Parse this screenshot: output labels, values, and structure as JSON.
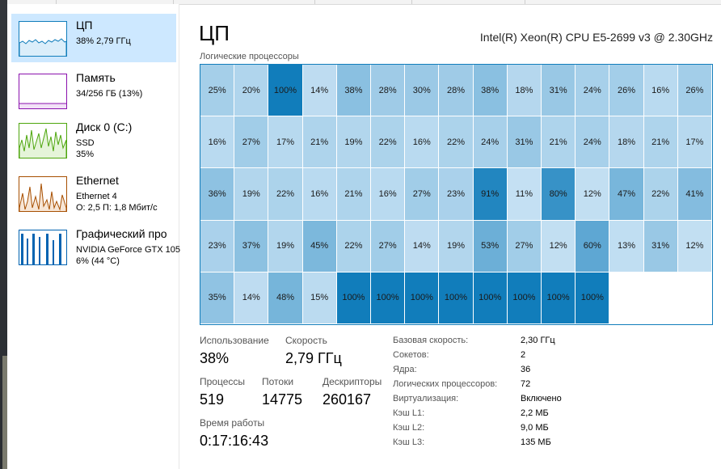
{
  "sidebar": {
    "items": [
      {
        "title": "ЦП",
        "lines": [
          "38% 2,79 ГГц"
        ],
        "selected": true,
        "color": "#117dbb",
        "icon": "cpu-graph-icon"
      },
      {
        "title": "Память",
        "lines": [
          "34/256 ГБ (13%)"
        ],
        "selected": false,
        "color": "#8b12ae",
        "icon": "memory-graph-icon"
      },
      {
        "title": "Диск 0 (C:)",
        "lines": [
          "SSD",
          "35%"
        ],
        "selected": false,
        "color": "#4da60c",
        "icon": "disk-graph-icon"
      },
      {
        "title": "Ethernet",
        "lines": [
          "Ethernet 4",
          "О: 2,5 П: 1,8 Мбит/с"
        ],
        "selected": false,
        "color": "#a74f01",
        "icon": "ethernet-graph-icon"
      },
      {
        "title": "Графический про",
        "lines": [
          "NVIDIA GeForce GTX 105",
          "6% (44 °C)"
        ],
        "selected": false,
        "color": "#0063b1",
        "icon": "gpu-graph-icon"
      }
    ]
  },
  "main": {
    "title": "ЦП",
    "cpu_name": "Intel(R) Xeon(R) CPU E5-2699 v3 @ 2.30GHz",
    "grid_label": "Логические процессоры",
    "processors": [
      "25%",
      "20%",
      "100%",
      "14%",
      "38%",
      "28%",
      "30%",
      "28%",
      "38%",
      "18%",
      "31%",
      "24%",
      "26%",
      "16%",
      "26%",
      "16%",
      "27%",
      "17%",
      "21%",
      "19%",
      "22%",
      "16%",
      "22%",
      "24%",
      "31%",
      "21%",
      "24%",
      "18%",
      "21%",
      "17%",
      "36%",
      "19%",
      "22%",
      "16%",
      "21%",
      "16%",
      "27%",
      "23%",
      "91%",
      "11%",
      "80%",
      "12%",
      "47%",
      "22%",
      "41%",
      "23%",
      "37%",
      "19%",
      "45%",
      "22%",
      "27%",
      "14%",
      "19%",
      "53%",
      "27%",
      "12%",
      "60%",
      "13%",
      "31%",
      "12%",
      "35%",
      "14%",
      "48%",
      "15%",
      "100%",
      "100%",
      "100%",
      "100%",
      "100%",
      "100%",
      "100%",
      "100%"
    ],
    "stats": {
      "usage_label": "Использование",
      "usage_value": "38%",
      "speed_label": "Скорость",
      "speed_value": "2,79 ГГц",
      "processes_label": "Процессы",
      "processes_value": "519",
      "threads_label": "Потоки",
      "threads_value": "14775",
      "handles_label": "Дескрипторы",
      "handles_value": "260167",
      "uptime_label": "Время работы",
      "uptime_value": "0:17:16:43"
    },
    "specs": [
      {
        "label": "Базовая скорость:",
        "value": "2,30 ГГц"
      },
      {
        "label": "Сокетов:",
        "value": "2"
      },
      {
        "label": "Ядра:",
        "value": "36"
      },
      {
        "label": "Логических процессоров:",
        "value": "72"
      },
      {
        "label": "Виртуализация:",
        "value": "Включено"
      },
      {
        "label": "Кэш L1:",
        "value": "2,2 МБ"
      },
      {
        "label": "Кэш L2:",
        "value": "9,0 МБ"
      },
      {
        "label": "Кэш L3:",
        "value": "135 МБ"
      }
    ]
  }
}
